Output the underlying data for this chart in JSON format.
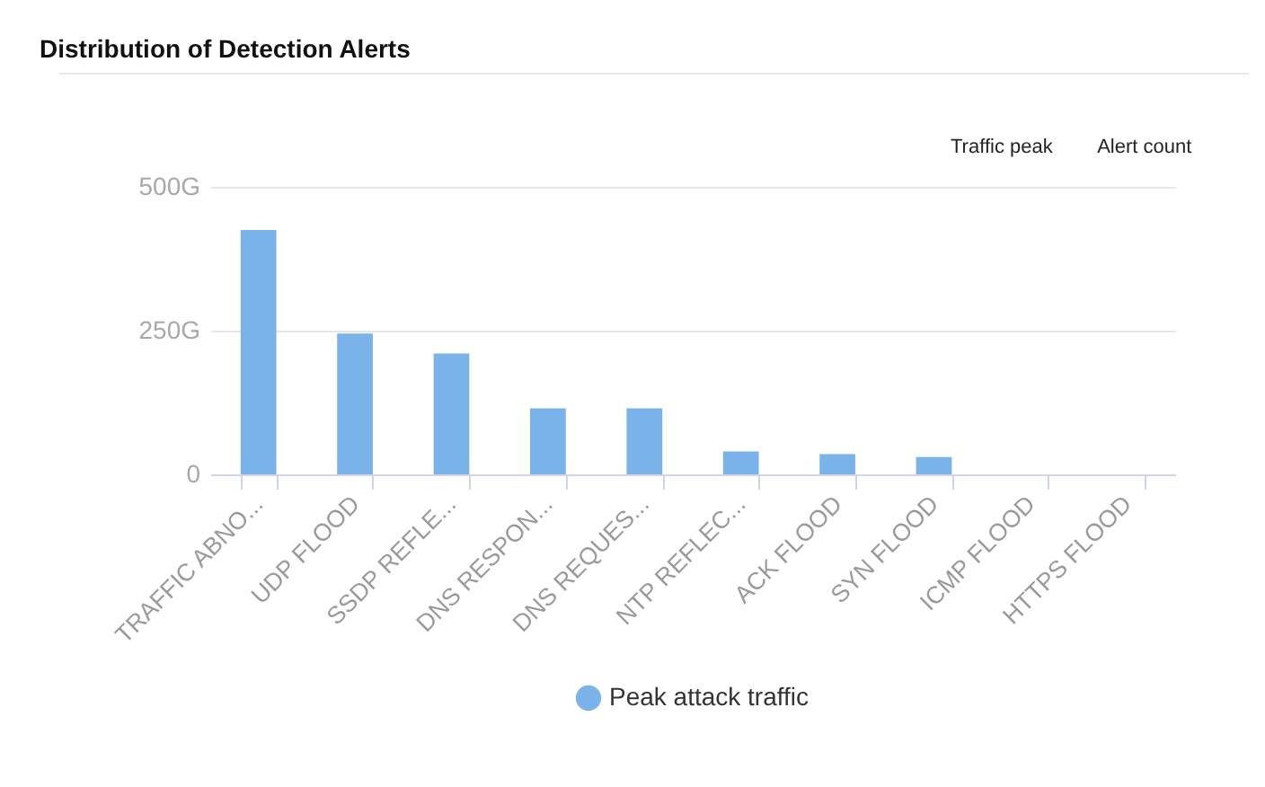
{
  "chart_data": {
    "type": "bar",
    "title": "Distribution of Detection Alerts",
    "categories": [
      "TRAFFIC ABNO...",
      "UDP FLOOD",
      "SSDP REFLE...",
      "DNS RESPON...",
      "DNS REQUES...",
      "NTP REFLEC...",
      "ACK FLOOD",
      "SYN FLOOD",
      "ICMP FLOOD",
      "HTTPS FLOOD"
    ],
    "series": [
      {
        "name": "Peak attack traffic",
        "color": "#7ab3ea",
        "values": [
          425,
          245,
          210,
          115,
          115,
          40,
          35,
          30,
          0,
          0
        ]
      }
    ],
    "ylim": [
      0,
      500
    ],
    "yticks": [
      0,
      {
        "value": 250,
        "label": "250G"
      },
      {
        "value": 500,
        "label": "500G"
      }
    ],
    "grid": "y",
    "legend": "bottom",
    "annotations": [
      "Traffic peak",
      "Alert count"
    ]
  }
}
